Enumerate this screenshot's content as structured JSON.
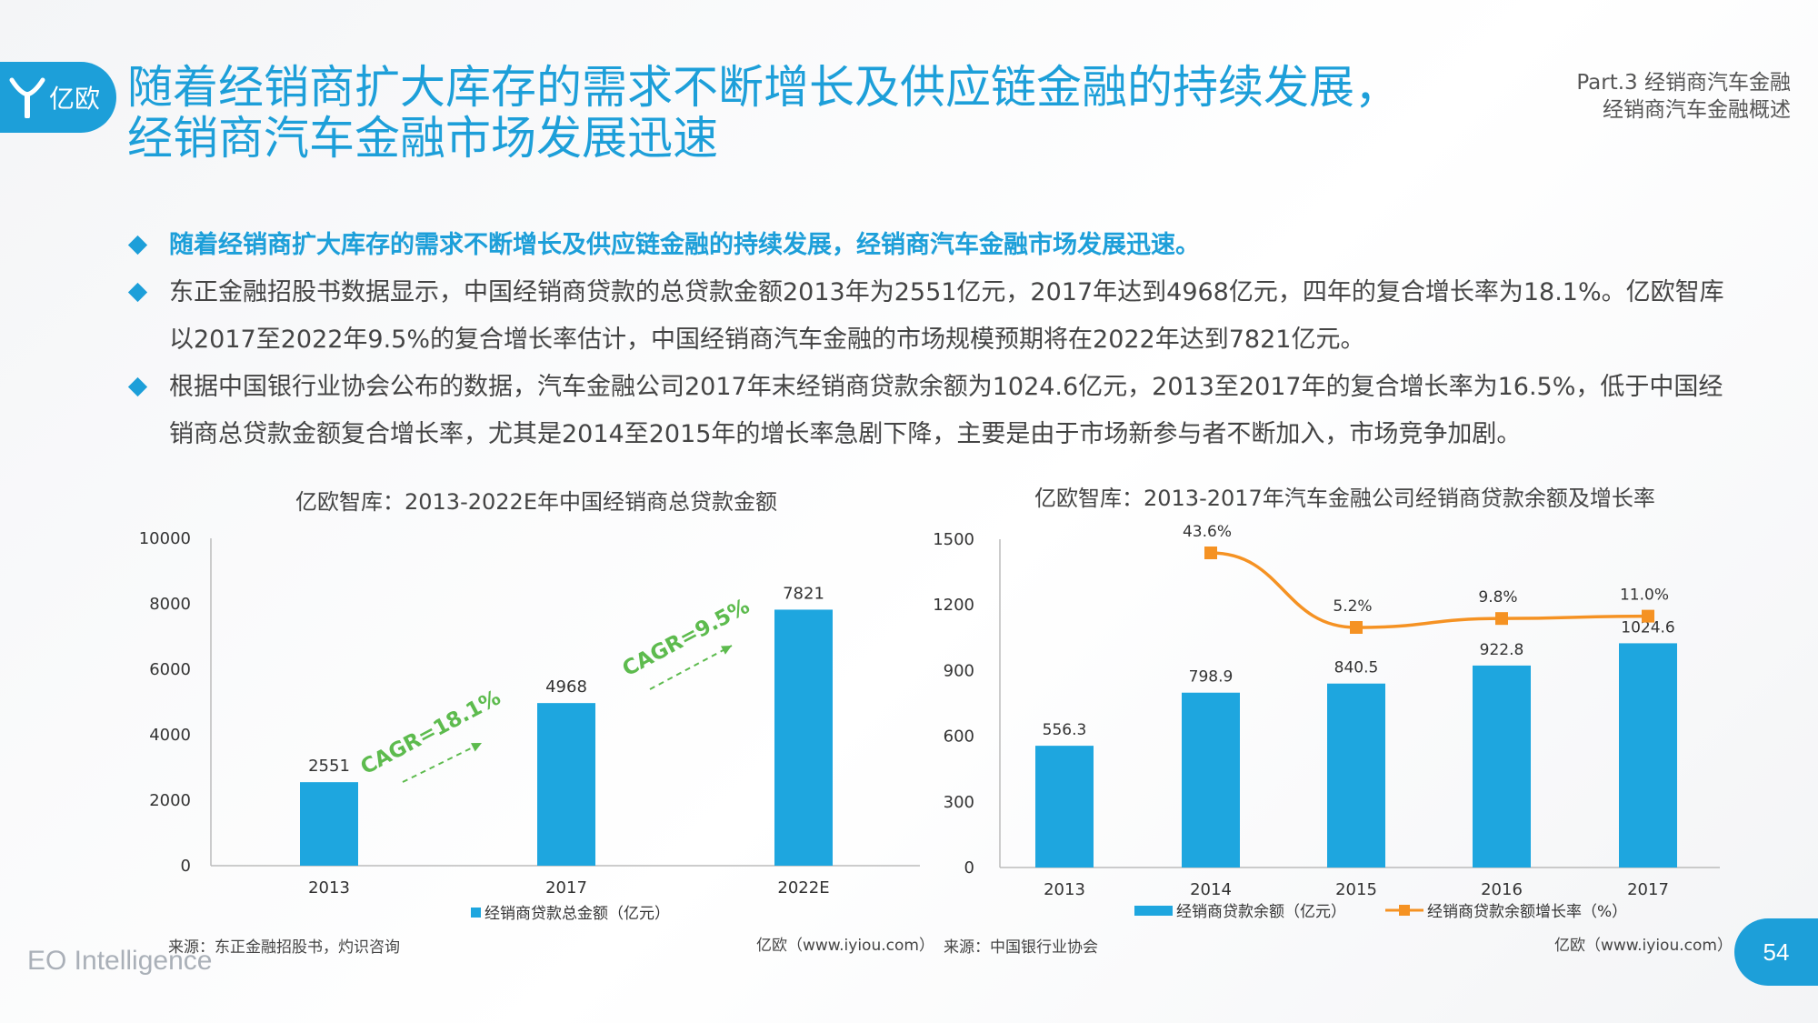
{
  "header": {
    "logo_text": "亿欧",
    "title_line1": "随着经销商扩大库存的需求不断增长及供应链金融的持续发展，",
    "title_line2": "经销商汽车金融市场发展迅速",
    "part_line1": "Part.3 经销商汽车金融",
    "part_line2": "经销商汽车金融概述"
  },
  "bullets": [
    {
      "text": "随着经销商扩大库存的需求不断增长及供应链金融的持续发展，经销商汽车金融市场发展迅速。"
    },
    {
      "text": "东正金融招股书数据显示，中国经销商贷款的总贷款金额2013年为2551亿元，2017年达到4968亿元，四年的复合增长率为18.1%。亿欧智库以2017至2022年9.5%的复合增长率估计，中国经销商汽车金融的市场规模预期将在2022年达到7821亿元。"
    },
    {
      "text": "根据中国银行业协会公布的数据，汽车金融公司2017年末经销商贷款余额为1024.6亿元，2013至2017年的复合增长率为16.5%，低于中国经销商总贷款金额复合增长率，尤其是2014至2015年的增长率急剧下降，主要是由于市场新参与者不断加入，市场竞争加剧。"
    }
  ],
  "charts": {
    "left": {
      "source": "来源：东正金融招股书，灼识咨询",
      "credit": "亿欧（www.iyiou.com）"
    },
    "right": {
      "source": "来源：中国银行业协会",
      "credit": "亿欧（www.iyiou.com）"
    }
  },
  "footer": {
    "brand": "EO Intelligence",
    "page": "54"
  },
  "colors": {
    "accent": "#1d9fd9",
    "bar": "#1ea6df",
    "line": "#f59223",
    "cagr": "#5dbb4e"
  },
  "chart_data": [
    {
      "type": "bar",
      "title": "亿欧智库：2013-2022E年中国经销商总贷款金额",
      "categories": [
        "2013",
        "2017",
        "2022E"
      ],
      "series": [
        {
          "name": "经销商贷款总金额（亿元）",
          "values": [
            2551,
            4968,
            7821
          ]
        }
      ],
      "ylim": [
        0,
        10000
      ],
      "yticks": [
        0,
        2000,
        4000,
        6000,
        8000,
        10000
      ],
      "annotations": [
        {
          "text": "CAGR=18.1%",
          "from": "2013",
          "to": "2017"
        },
        {
          "text": "CAGR=9.5%",
          "from": "2017",
          "to": "2022E"
        }
      ],
      "legend": "bottom"
    },
    {
      "type": "bar",
      "title": "亿欧智库：2013-2017年汽车金融公司经销商贷款余额及增长率",
      "categories": [
        "2013",
        "2014",
        "2015",
        "2016",
        "2017"
      ],
      "series": [
        {
          "name": "经销商贷款余额（亿元）",
          "type": "bar",
          "values": [
            556.3,
            798.9,
            840.5,
            922.8,
            1024.6
          ]
        },
        {
          "name": "经销商贷款余额增长率（%）",
          "type": "line",
          "values": [
            null,
            43.6,
            5.2,
            9.8,
            11.0
          ],
          "labels": [
            "",
            "43.6%",
            "5.2%",
            "9.8%",
            "11.0%"
          ]
        }
      ],
      "ylim": [
        0,
        1500
      ],
      "yticks": [
        0,
        300,
        600,
        900,
        1200,
        1500
      ],
      "legend": "bottom"
    }
  ]
}
